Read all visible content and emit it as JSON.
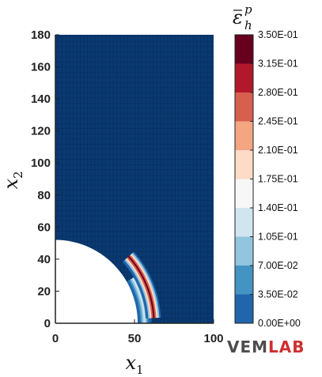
{
  "chart_data": {
    "type": "heatmap",
    "title": "",
    "xlabel": "x",
    "xlabel_subscript": "1",
    "ylabel": "x",
    "ylabel_subscript": "2",
    "xlim": [
      0,
      100
    ],
    "ylim": [
      0,
      180
    ],
    "x_ticks": [
      {
        "value": 0,
        "label": "0"
      },
      {
        "value": 50,
        "label": "50"
      },
      {
        "value": 100,
        "label": "100"
      }
    ],
    "y_ticks": [
      {
        "value": 0,
        "label": "0"
      },
      {
        "value": 20,
        "label": "20"
      },
      {
        "value": 40,
        "label": "40"
      },
      {
        "value": 60,
        "label": "60"
      },
      {
        "value": 80,
        "label": "80"
      },
      {
        "value": 100,
        "label": "100"
      },
      {
        "value": 120,
        "label": "120"
      },
      {
        "value": 140,
        "label": "140"
      },
      {
        "value": 160,
        "label": "160"
      },
      {
        "value": 180,
        "label": "180"
      }
    ],
    "hole": {
      "shape": "quarter-circle",
      "center": [
        0,
        0
      ],
      "radius": 52
    },
    "field": "equivalent plastic strain",
    "colorbar": {
      "title": "ε",
      "title_superscript": "p",
      "title_subscript": "h",
      "levels": [
        {
          "value": "0.00E+00",
          "color": "#053061"
        },
        {
          "value": "3.50E-02",
          "color": "#2166ac"
        },
        {
          "value": "7.00E-02",
          "color": "#4393c3"
        },
        {
          "value": "1.05E-01",
          "color": "#92c5de"
        },
        {
          "value": "1.40E-01",
          "color": "#d1e5f0"
        },
        {
          "value": "1.75E-01",
          "color": "#f7f7f7"
        },
        {
          "value": "2.10E-01",
          "color": "#fddbc7"
        },
        {
          "value": "2.45E-01",
          "color": "#f4a582"
        },
        {
          "value": "2.80E-01",
          "color": "#d6604d"
        },
        {
          "value": "3.15E-01",
          "color": "#b2182b"
        },
        {
          "value": "3.50E-01",
          "color": "#67001f"
        }
      ]
    },
    "shear_bands": [
      {
        "name": "main band",
        "center": [
          0,
          0
        ],
        "inner_radius": 58,
        "outer_radius": 66,
        "angle_start_deg": 3,
        "angle_end_deg": 42,
        "peak_value": 0.35
      },
      {
        "name": "inner band",
        "center": [
          0,
          0
        ],
        "inner_radius": 52,
        "outer_radius": 60,
        "angle_start_deg": 0,
        "angle_end_deg": 30,
        "peak_value": 0.12
      }
    ]
  },
  "logo": {
    "part1": "VEM",
    "part2": "LAB"
  },
  "colors": {
    "background_field": "#0a3a72",
    "mesh_line": "#062b58",
    "hole": "#ffffff"
  }
}
